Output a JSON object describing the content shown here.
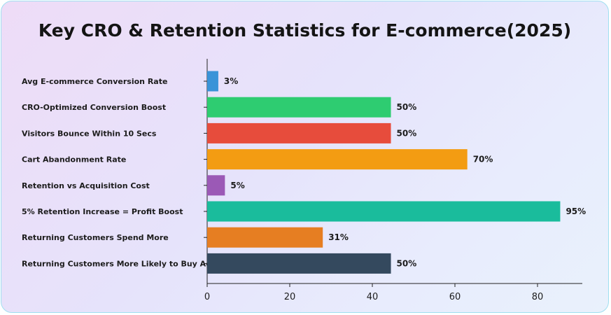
{
  "chart_data": {
    "type": "bar",
    "orientation": "horizontal",
    "title": "Key CRO & Retention Statistics for E-commerce(2025)",
    "xlabel": "",
    "ylabel": "",
    "xlim": [
      0,
      90
    ],
    "x_ticks": [
      0,
      20,
      40,
      60,
      80
    ],
    "grid": false,
    "categories": [
      "Avg E-commerce Conversion Rate",
      "CRO-Optimized Conversion Boost",
      "Visitors Bounce Within 10 Secs",
      "Cart Abandonment Rate",
      "Retention vs Acquisition Cost",
      "5% Retention Increase = Profit Boost",
      "Returning Customers Spend More",
      "Returning Customers More Likely to Buy Again"
    ],
    "values": [
      3,
      50,
      50,
      70,
      5,
      95,
      31,
      50
    ],
    "bar_lengths": [
      2.7,
      44.5,
      44.5,
      63,
      4.3,
      85.5,
      28,
      44.5
    ],
    "value_labels": [
      "3%",
      "50%",
      "50%",
      "70%",
      "5%",
      "95%",
      "31%",
      "50%"
    ],
    "colors": [
      "#3a93d8",
      "#2ecc71",
      "#e74c3c",
      "#f39c12",
      "#9b59b6",
      "#1abc9c",
      "#e67e22",
      "#34495e"
    ]
  }
}
